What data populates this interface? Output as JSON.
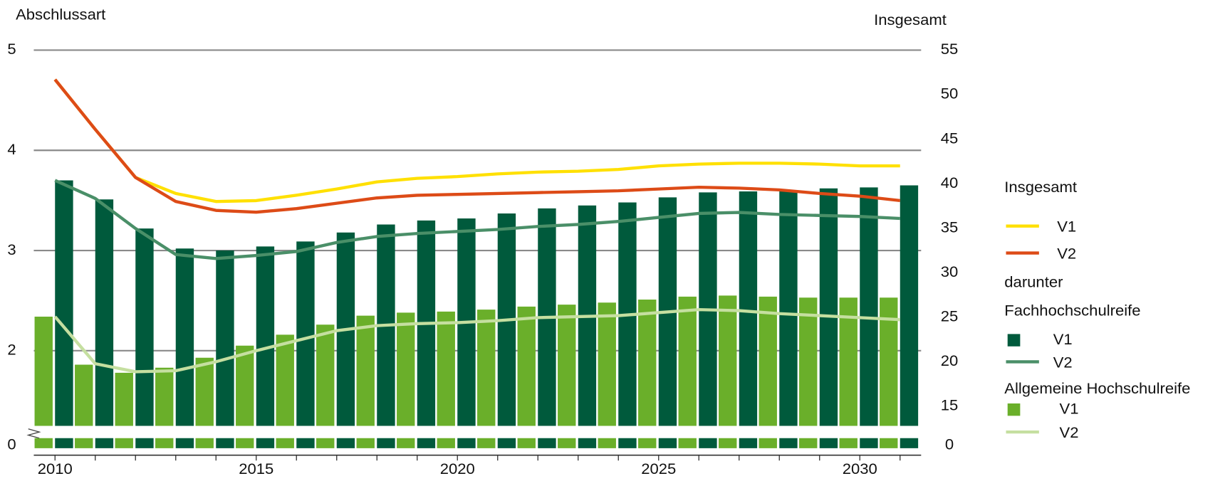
{
  "chart_data": {
    "type": "bar",
    "y_label": "Abschlussart",
    "y2_label": "Insgesamt",
    "categories": [
      "2010",
      null,
      null,
      null,
      null,
      "2015",
      null,
      null,
      null,
      null,
      "2020",
      null,
      null,
      null,
      null,
      "2025",
      null,
      null,
      null,
      null,
      "2030",
      null
    ],
    "ylim": [
      0,
      5
    ],
    "yticks": [
      0,
      2,
      3,
      4,
      5
    ],
    "ybreak": 1.25,
    "y2lim": [
      0,
      55
    ],
    "y2ticks": [
      0,
      15,
      20,
      25,
      30,
      35,
      40,
      45,
      50,
      55
    ],
    "y2break": 12.8,
    "grid": true,
    "legend_note": "darunter",
    "groups": [
      {
        "name": "Insgesamt",
        "series": [
          {
            "name": "V1",
            "type": "line",
            "axis": "y2",
            "color": "#ffe000",
            "values": [
              51.7,
              46.1,
              40.7,
              38.9,
              38.0,
              38.1,
              38.7,
              39.4,
              40.2,
              40.6,
              40.8,
              41.1,
              41.3,
              41.4,
              41.6,
              42.0,
              42.2,
              42.3,
              42.3,
              42.2,
              42.0,
              42.0
            ]
          },
          {
            "name": "V2",
            "type": "line",
            "axis": "y2",
            "color": "#dd4b17",
            "values": [
              51.7,
              46.1,
              40.7,
              38.0,
              37.0,
              36.8,
              37.2,
              37.8,
              38.4,
              38.7,
              38.8,
              38.9,
              39.0,
              39.1,
              39.2,
              39.4,
              39.6,
              39.5,
              39.3,
              38.9,
              38.6,
              38.1
            ]
          }
        ]
      },
      {
        "name": "Fachhochschulreife",
        "series": [
          {
            "name": "V1",
            "type": "bar",
            "axis": "y",
            "color": "#005a3c",
            "values": [
              3.7,
              3.51,
              3.22,
              3.02,
              3.0,
              3.04,
              3.09,
              3.18,
              3.26,
              3.3,
              3.32,
              3.37,
              3.42,
              3.45,
              3.48,
              3.53,
              3.58,
              3.59,
              3.6,
              3.62,
              3.63,
              3.65
            ]
          },
          {
            "name": "V2",
            "type": "line",
            "axis": "y",
            "color": "#4a8f68",
            "values": [
              3.7,
              3.52,
              3.22,
              2.96,
              2.92,
              2.95,
              2.99,
              3.08,
              3.14,
              3.17,
              3.19,
              3.21,
              3.24,
              3.26,
              3.29,
              3.33,
              3.37,
              3.38,
              3.36,
              3.35,
              3.34,
              3.32
            ]
          }
        ]
      },
      {
        "name": "Allgemeine Hochschulreife",
        "series": [
          {
            "name": "V1",
            "type": "bar",
            "axis": "y",
            "color": "#6aaf2a",
            "values": [
              2.34,
              1.86,
              1.78,
              1.83,
              1.93,
              2.05,
              2.16,
              2.26,
              2.35,
              2.38,
              2.39,
              2.41,
              2.44,
              2.46,
              2.48,
              2.51,
              2.54,
              2.55,
              2.54,
              2.53,
              2.53,
              2.53
            ]
          },
          {
            "name": "V2",
            "type": "line",
            "axis": "y",
            "color": "#c5dfa0",
            "values": [
              2.34,
              1.87,
              1.79,
              1.8,
              1.89,
              2.0,
              2.1,
              2.2,
              2.25,
              2.27,
              2.28,
              2.3,
              2.33,
              2.34,
              2.35,
              2.38,
              2.41,
              2.4,
              2.37,
              2.35,
              2.33,
              2.31
            ]
          }
        ]
      }
    ]
  }
}
